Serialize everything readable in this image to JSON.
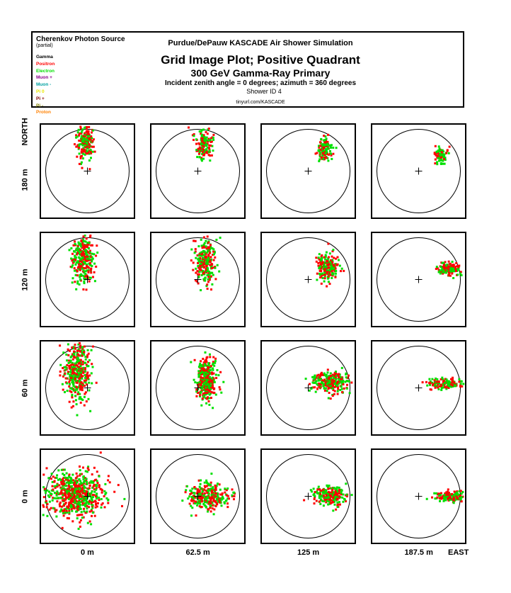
{
  "header": {
    "legend_title": "Cherenkov Photon Source",
    "legend_subtitle": "(partial)",
    "legend_items": [
      {
        "label": "Gamma",
        "color": "#000000"
      },
      {
        "label": "Positron",
        "color": "#ff0000"
      },
      {
        "label": "Electron",
        "color": "#00e000"
      },
      {
        "label": "Muon +",
        "color": "#8b008b"
      },
      {
        "label": "Muon -",
        "color": "#00a0a0"
      },
      {
        "label": "Pi 0",
        "color": "#e8e800"
      },
      {
        "label": "Pi +",
        "color": "#800000"
      },
      {
        "label": "Pi -",
        "color": "#808000"
      },
      {
        "label": "Proton",
        "color": "#ff8000"
      }
    ],
    "simulation": "Purdue/DePauw KASCADE Air Shower Simulation",
    "title": "Grid Image Plot; Positive Quadrant",
    "subtitle": "300 GeV Gamma-Ray Primary",
    "angles": "Incident zenith angle =  0 degrees;  azimuth =  360 degrees",
    "shower_id": "Shower ID 4",
    "url": "tinyurl.com/KASCADE"
  },
  "axes": {
    "north_label": "NORTH",
    "east_label": "EAST",
    "row_labels": [
      "180 m",
      "120 m",
      "60 m",
      "0 m"
    ],
    "column_labels": [
      "0 m",
      "62.5 m",
      "125 m",
      "187.5 m"
    ]
  },
  "chart_data": {
    "type": "scatter",
    "rows_y_m": [
      180,
      120,
      60,
      0
    ],
    "columns_x_m": [
      0,
      62.5,
      125,
      187.5
    ],
    "series": [
      {
        "name": "Positron",
        "color": "#ff0000"
      },
      {
        "name": "Electron",
        "color": "#00e000"
      }
    ],
    "grid": [
      [
        {
          "x": -0.05,
          "y": 0.68,
          "sx": 0.1,
          "sy": 0.22,
          "n": 190
        },
        {
          "x": 0.15,
          "y": 0.62,
          "sx": 0.1,
          "sy": 0.18,
          "n": 150
        },
        {
          "x": 0.38,
          "y": 0.5,
          "sx": 0.09,
          "sy": 0.14,
          "n": 120
        },
        {
          "x": 0.56,
          "y": 0.38,
          "sx": 0.09,
          "sy": 0.1,
          "n": 70
        }
      ],
      [
        {
          "x": -0.1,
          "y": 0.5,
          "sx": 0.13,
          "sy": 0.3,
          "n": 280
        },
        {
          "x": 0.18,
          "y": 0.42,
          "sx": 0.12,
          "sy": 0.26,
          "n": 230
        },
        {
          "x": 0.45,
          "y": 0.3,
          "sx": 0.14,
          "sy": 0.16,
          "n": 200
        },
        {
          "x": 0.72,
          "y": 0.25,
          "sx": 0.13,
          "sy": 0.08,
          "n": 130
        }
      ],
      [
        {
          "x": -0.25,
          "y": 0.45,
          "sx": 0.15,
          "sy": 0.36,
          "n": 400
        },
        {
          "x": 0.2,
          "y": 0.2,
          "sx": 0.11,
          "sy": 0.26,
          "n": 340
        },
        {
          "x": 0.55,
          "y": 0.14,
          "sx": 0.22,
          "sy": 0.12,
          "n": 260
        },
        {
          "x": 0.65,
          "y": 0.1,
          "sx": 0.22,
          "sy": 0.06,
          "n": 150
        }
      ],
      [
        {
          "x": -0.3,
          "y": 0.05,
          "sx": 0.33,
          "sy": 0.28,
          "n": 650
        },
        {
          "x": 0.25,
          "y": 0.0,
          "sx": 0.25,
          "sy": 0.16,
          "n": 300
        },
        {
          "x": 0.55,
          "y": 0.02,
          "sx": 0.2,
          "sy": 0.12,
          "n": 220
        },
        {
          "x": 0.76,
          "y": 0.0,
          "sx": 0.18,
          "sy": 0.06,
          "n": 150
        }
      ]
    ]
  }
}
